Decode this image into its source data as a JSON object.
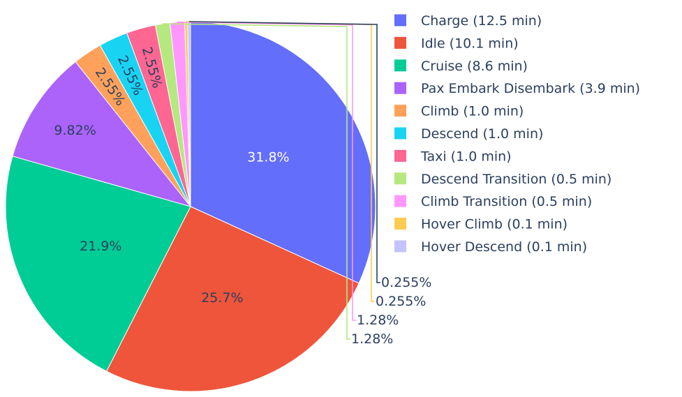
{
  "chart_data": {
    "type": "pie",
    "direction": "clockwise",
    "start": "top (12 o'clock)",
    "legend_position": "right",
    "slices": [
      {
        "label": "Charge",
        "value": 12.5,
        "unit": "min",
        "legend": "Charge (12.5 min)",
        "pct_label": "31.8%",
        "color": "#636efa",
        "text_color": "#ffffff",
        "label_pos": "inside"
      },
      {
        "label": "Idle",
        "value": 10.1,
        "unit": "min",
        "legend": "Idle (10.1 min)",
        "pct_label": "25.7%",
        "color": "#ef553b",
        "text_color": "#2a3f5f",
        "label_pos": "inside"
      },
      {
        "label": "Cruise",
        "value": 8.6,
        "unit": "min",
        "legend": "Cruise (8.6 min)",
        "pct_label": "21.9%",
        "color": "#00cc96",
        "text_color": "#2a3f5f",
        "label_pos": "inside"
      },
      {
        "label": "Pax Embark Disembark",
        "value": 3.9,
        "unit": "min",
        "legend": "Pax Embark Disembark (3.9 min)",
        "pct_label": "9.82%",
        "color": "#ab63fa",
        "text_color": "#2a3f5f",
        "label_pos": "inside"
      },
      {
        "label": "Climb",
        "value": 1.0,
        "unit": "min",
        "legend": "Climb (1.0 min)",
        "pct_label": "2.55%",
        "color": "#ffa15a",
        "text_color": "#2a3f5f",
        "label_pos": "inside-radial"
      },
      {
        "label": "Descend",
        "value": 1.0,
        "unit": "min",
        "legend": "Descend (1.0 min)",
        "pct_label": "2.55%",
        "color": "#19d3f3",
        "text_color": "#2a3f5f",
        "label_pos": "inside-radial"
      },
      {
        "label": "Taxi",
        "value": 1.0,
        "unit": "min",
        "legend": "Taxi (1.0 min)",
        "pct_label": "2.55%",
        "color": "#ff6692",
        "text_color": "#2a3f5f",
        "label_pos": "inside-radial"
      },
      {
        "label": "Descend Transition",
        "value": 0.5,
        "unit": "min",
        "legend": "Descend Transition (0.5 min)",
        "pct_label": "1.28%",
        "color": "#b6e880",
        "text_color": "#2a3f5f",
        "label_pos": "outside"
      },
      {
        "label": "Climb Transition",
        "value": 0.5,
        "unit": "min",
        "legend": "Climb Transition (0.5 min)",
        "pct_label": "1.28%",
        "color": "#ff97ff",
        "text_color": "#2a3f5f",
        "label_pos": "outside"
      },
      {
        "label": "Hover Climb",
        "value": 0.1,
        "unit": "min",
        "legend": "Hover Climb (0.1 min)",
        "pct_label": "0.255%",
        "color": "#fecb52",
        "text_color": "#2a3f5f",
        "label_pos": "outside"
      },
      {
        "label": "Hover Descend",
        "value": 0.1,
        "unit": "min",
        "legend": "Hover Descend (0.1 min)",
        "pct_label": "0.255%",
        "color": "#c2c4fb",
        "text_color": "#2a3f5f",
        "label_pos": "outside"
      }
    ]
  }
}
